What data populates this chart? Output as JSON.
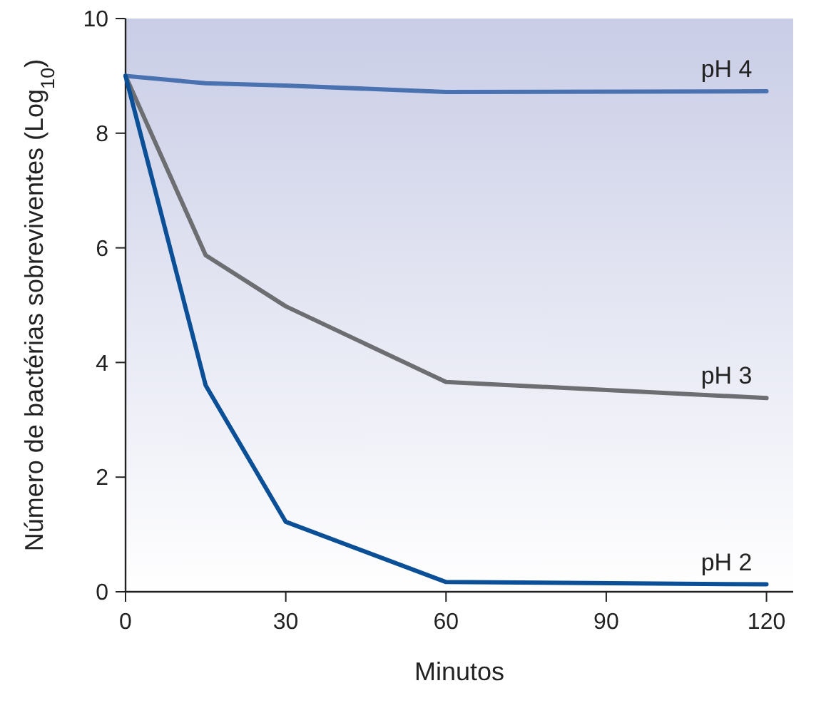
{
  "chart_data": {
    "type": "line",
    "xlabel": "Minutos",
    "ylabel": "Número de bactérias sobreviventes (Log$_{10}$)",
    "x": [
      0,
      15,
      30,
      60,
      120
    ],
    "xlim": [
      0,
      125
    ],
    "xticks": [
      0,
      30,
      60,
      90,
      120
    ],
    "ylim": [
      0,
      10
    ],
    "yticks": [
      0,
      2,
      4,
      6,
      8,
      10
    ],
    "grid": false,
    "marker": "none",
    "line_style": "solid",
    "series": [
      {
        "name": "pH 4",
        "color": "#4a72b0",
        "values": [
          9,
          8.87,
          8.83,
          8.72,
          8.73
        ]
      },
      {
        "name": "pH 3",
        "color": "#6d6e71",
        "values": [
          9,
          5.87,
          4.98,
          3.66,
          3.38
        ]
      },
      {
        "name": "pH 2",
        "color": "#0b4f96",
        "values": [
          9,
          3.6,
          1.22,
          0.17,
          0.13
        ]
      }
    ]
  }
}
